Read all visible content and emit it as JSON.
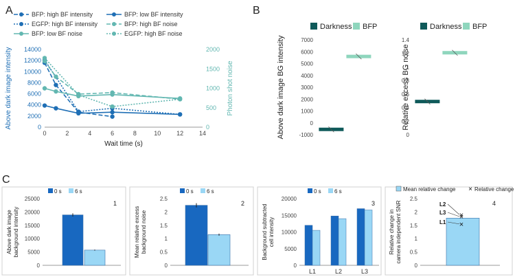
{
  "panel_letters": [
    "A",
    "B",
    "C"
  ],
  "colors": {
    "dark_blue": "#1f6fb5",
    "teal": "#62b7b1",
    "dark_teal": "#0f5a5a",
    "mint": "#8fd6bd",
    "navy_bar": "#1868c0",
    "light_bar": "#9ad7f5",
    "axis": "#888888"
  },
  "chart_data": [
    {
      "id": "A",
      "type": "line",
      "xlabel": "Wait time (s)",
      "ylabel": "Above dark image intensity",
      "y2label": "Photon shot noise",
      "xlim": [
        0,
        14
      ],
      "xticks": [
        0,
        2,
        4,
        6,
        8,
        10,
        12,
        14
      ],
      "ylim": [
        0,
        14000
      ],
      "yticks": [
        0,
        2000,
        4000,
        6000,
        8000,
        10000,
        12000,
        14000
      ],
      "y2lim": [
        0,
        2000
      ],
      "y2ticks": [
        0,
        500,
        1000,
        1500,
        2000
      ],
      "legend": "top-left",
      "series": [
        {
          "name": "BFP: high BF intensity",
          "axis": "left",
          "color": "#1f6fb5",
          "style": "dash",
          "x": [
            0,
            1,
            3,
            6
          ],
          "y": [
            11600,
            7600,
            2700,
            1900
          ]
        },
        {
          "name": "BFP: low BF intensity",
          "axis": "left",
          "color": "#1f6fb5",
          "style": "solid",
          "x": [
            0,
            1,
            3,
            6,
            12
          ],
          "y": [
            3900,
            3400,
            2500,
            2700,
            2300
          ]
        },
        {
          "name": "EGFP: high BF intensity",
          "axis": "left",
          "color": "#1f6fb5",
          "style": "dot",
          "x": [
            0,
            3,
            6,
            12
          ],
          "y": [
            12100,
            2800,
            3400,
            2300
          ]
        },
        {
          "name": "BFP: high BF noise",
          "axis": "right",
          "color": "#62b7b1",
          "style": "dash",
          "x": [
            0,
            1,
            3,
            6,
            12
          ],
          "y": [
            1700,
            1300,
            850,
            890,
            720
          ]
        },
        {
          "name": "BFP: low BF noise",
          "axis": "right",
          "color": "#62b7b1",
          "style": "solid",
          "x": [
            0,
            1,
            3,
            6,
            12
          ],
          "y": [
            1000,
            920,
            800,
            840,
            740
          ]
        },
        {
          "name": "EGFP: high BF noise",
          "axis": "right",
          "color": "#62b7b1",
          "style": "dot",
          "x": [
            0,
            3,
            6,
            12
          ],
          "y": [
            1780,
            830,
            530,
            720
          ]
        }
      ]
    },
    {
      "id": "B1",
      "type": "scatter",
      "ylabel": "Above dark image BG intensity",
      "ylim": [
        -1000,
        7000
      ],
      "yticks": [
        -1000,
        0,
        1000,
        2000,
        3000,
        4000,
        5000,
        6000,
        7000
      ],
      "legend": "top",
      "series": [
        {
          "name": "Darkness",
          "color": "#0f5a5a",
          "value": -550
        },
        {
          "name": "BFP",
          "color": "#8fd6bd",
          "value": 5600
        }
      ]
    },
    {
      "id": "B2",
      "type": "scatter",
      "ylabel": "Relative excess BG noise",
      "ylim": [
        0,
        1.4
      ],
      "yticks": [
        0,
        0.2,
        0.4,
        0.6,
        0.8,
        1,
        1.2,
        1.4
      ],
      "legend": "top",
      "series": [
        {
          "name": "Darkness",
          "color": "#0f5a5a",
          "value": 0.49
        },
        {
          "name": "BFP",
          "color": "#8fd6bd",
          "value": 1.21
        }
      ]
    },
    {
      "id": "C1",
      "type": "bar",
      "panel_number": "1",
      "ylabel": "Above dark image background intensity",
      "ylim": [
        0,
        25000
      ],
      "yticks": [
        0,
        5000,
        10000,
        15000,
        20000,
        25000
      ],
      "legend": "top",
      "series": [
        {
          "name": "0 s",
          "color": "#1868c0",
          "value": 18900,
          "error": 600
        },
        {
          "name": "6 s",
          "color": "#9ad7f5",
          "value": 5700,
          "error": 200
        }
      ]
    },
    {
      "id": "C2",
      "type": "bar",
      "panel_number": "2",
      "ylabel": "Mean relative excess background noise",
      "ylim": [
        0,
        2.5
      ],
      "yticks": [
        0,
        0.5,
        1,
        1.5,
        2,
        2.5
      ],
      "legend": "top",
      "series": [
        {
          "name": "0 s",
          "color": "#1868c0",
          "value": 2.25,
          "error": 0.08
        },
        {
          "name": "6 s",
          "color": "#9ad7f5",
          "value": 1.15,
          "error": 0.04
        }
      ]
    },
    {
      "id": "C3",
      "type": "bar",
      "panel_number": "3",
      "ylabel": "Background subtracted cell intensity",
      "ylim": [
        0,
        20000
      ],
      "yticks": [
        0,
        5000,
        10000,
        15000,
        20000
      ],
      "categories": [
        "L1",
        "L2",
        "L3"
      ],
      "legend": "top",
      "series": [
        {
          "name": "0 s",
          "color": "#1868c0",
          "values": [
            12000,
            14800,
            17000
          ]
        },
        {
          "name": "6 s",
          "color": "#9ad7f5",
          "values": [
            10500,
            14000,
            16600
          ]
        }
      ]
    },
    {
      "id": "C4",
      "type": "bar",
      "panel_number": "4",
      "ylabel": "Relative change in camera independent SNR",
      "ylim": [
        0,
        2.5
      ],
      "yticks": [
        0,
        0.5,
        1,
        1.5,
        2,
        2.5
      ],
      "legend": "top",
      "bar": {
        "name": "Mean relative change",
        "color": "#9ad7f5",
        "value": 1.77
      },
      "points_legend": "Relative change",
      "points": [
        {
          "label": "L2",
          "value": 1.9
        },
        {
          "label": "L3",
          "value": 1.83
        },
        {
          "label": "L1",
          "value": 1.55
        }
      ]
    }
  ]
}
